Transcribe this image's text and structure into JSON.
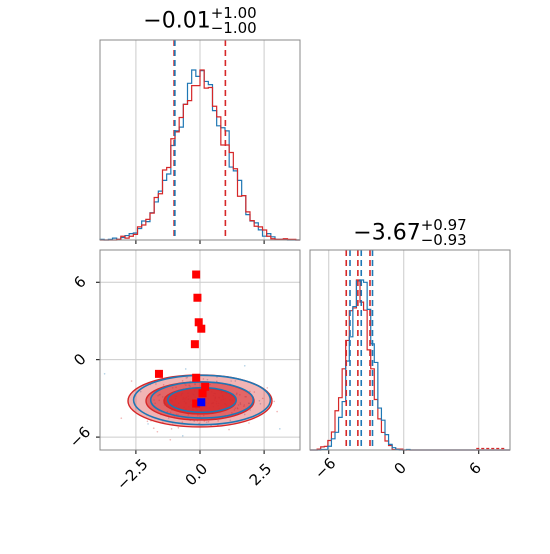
{
  "colors": {
    "red": "#d62728",
    "blue": "#1f77b4",
    "marker_red": "#ff0000",
    "marker_blue": "#0000ff",
    "grid": "#cccccc",
    "axis": "#888888"
  },
  "chart_data": [
    {
      "type": "histogram",
      "panel": "top-left",
      "title": {
        "main": "−0.01",
        "upper": "+1.00",
        "lower": "−1.00"
      },
      "xlim": [
        -3.9,
        3.9
      ],
      "x_ticks": [
        -2.5,
        0.0,
        2.5
      ],
      "quantile_lines": [
        -1.01,
        -0.01,
        0.99
      ],
      "series": [
        {
          "color": "#1f77b4",
          "mean": 0.0,
          "sd": 1.0,
          "label_values": [
            -1.0,
            0.0,
            1.0
          ]
        },
        {
          "color": "#d62728",
          "mean": 0.0,
          "sd": 1.0,
          "label_values": [
            -1.0,
            0.0,
            1.0
          ]
        }
      ]
    },
    {
      "type": "histogram",
      "panel": "bottom-right",
      "title": {
        "main": "−3.67",
        "upper": "+0.97",
        "lower": "−0.93"
      },
      "xlim": [
        -7.5,
        8.5
      ],
      "x_ticks": [
        -6,
        0,
        6
      ],
      "tick_labels": [
        "−6",
        "0",
        "6"
      ],
      "series": [
        {
          "color": "#d62728",
          "quantiles": [
            -4.6,
            -3.67,
            -2.7
          ]
        },
        {
          "color": "#1f77b4",
          "quantiles": [
            -4.3,
            -3.4,
            -2.5
          ]
        }
      ]
    },
    {
      "type": "scatter",
      "panel": "bottom-left",
      "xlim": [
        -3.9,
        3.9
      ],
      "ylim": [
        -7.0,
        8.5
      ],
      "x_ticks": [
        -2.5,
        0.0,
        2.5
      ],
      "x_tick_labels": [
        "−2.5",
        "0.0",
        "2.5"
      ],
      "y_ticks": [
        -6,
        0,
        6
      ],
      "y_tick_labels": [
        "−6",
        "0",
        "6"
      ],
      "red_markers": [
        {
          "x": -0.15,
          "y": 6.6
        },
        {
          "x": -0.1,
          "y": 4.8
        },
        {
          "x": -0.05,
          "y": 2.9
        },
        {
          "x": 0.05,
          "y": 2.4
        },
        {
          "x": -0.2,
          "y": 1.2
        },
        {
          "x": -1.6,
          "y": -1.1
        },
        {
          "x": -0.15,
          "y": -1.4
        },
        {
          "x": 0.2,
          "y": -2.1
        },
        {
          "x": 0.1,
          "y": -2.6
        },
        {
          "x": -0.15,
          "y": -3.4
        }
      ],
      "blue_markers": [
        {
          "x": 0.05,
          "y": -3.3
        }
      ],
      "contour_center": {
        "x": 0.0,
        "y": -3.2
      }
    }
  ]
}
